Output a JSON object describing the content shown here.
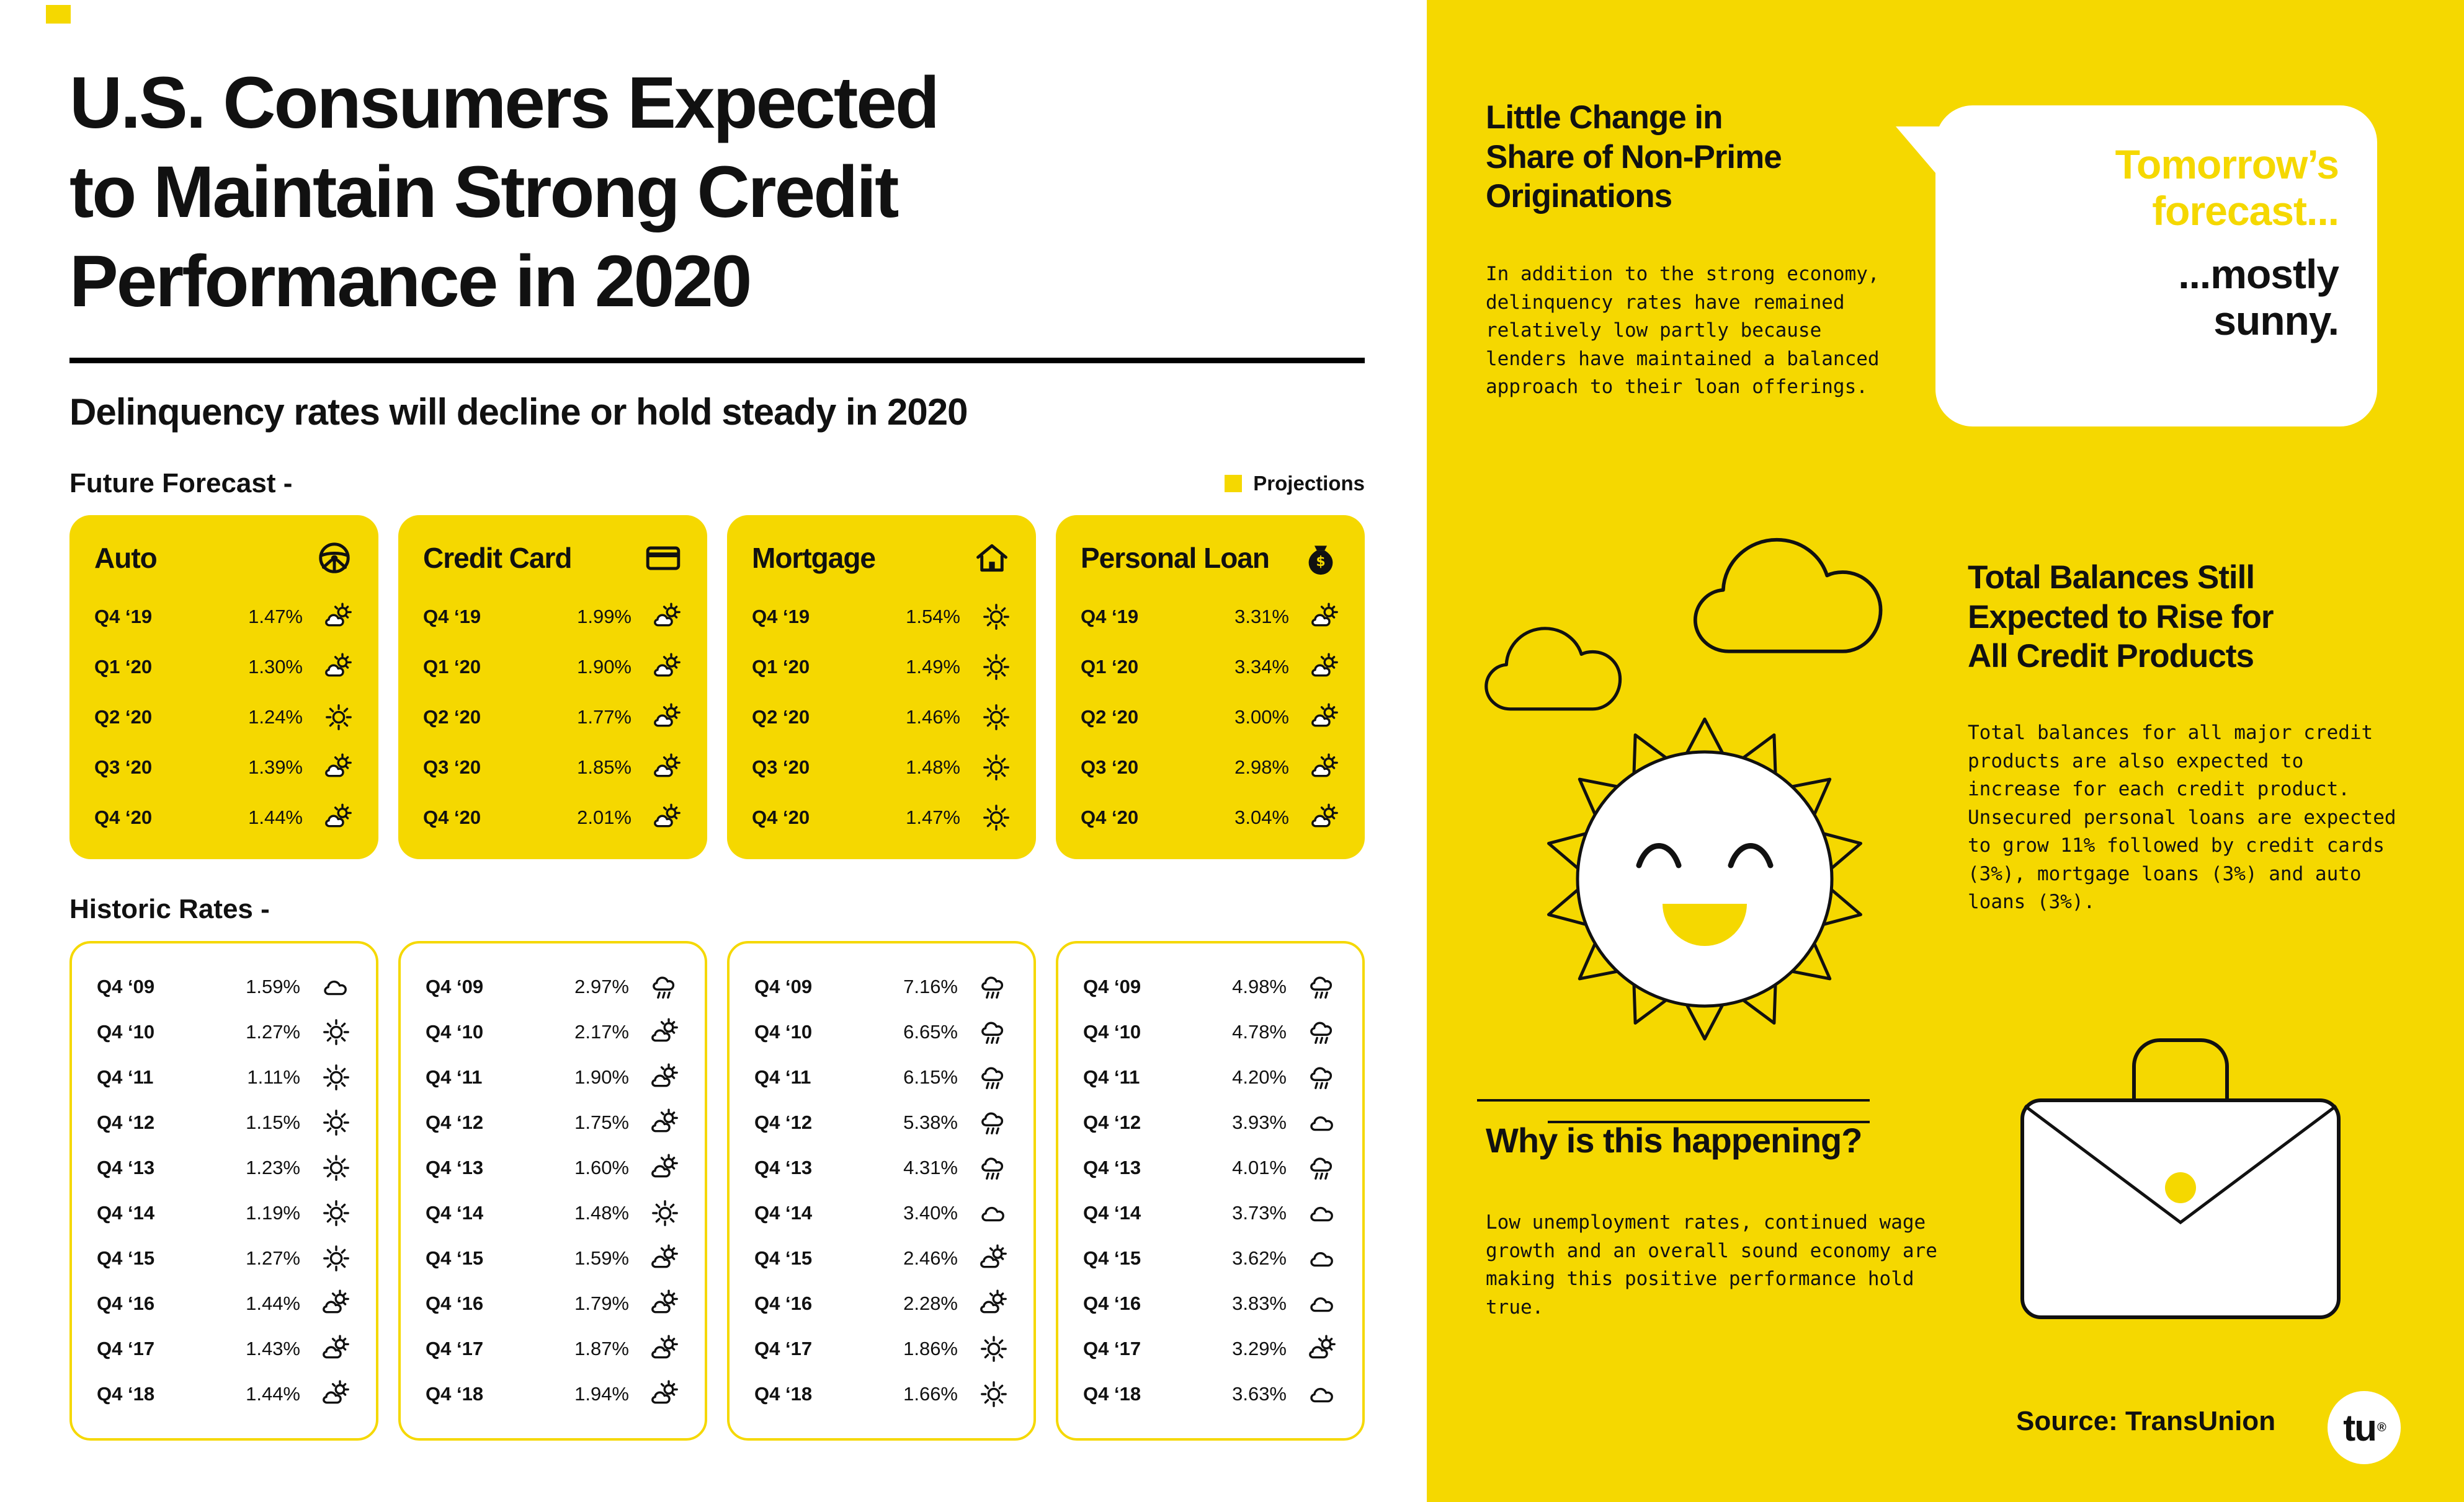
{
  "colors": {
    "yellow": "#F5D800",
    "ink": "#111111"
  },
  "page": {
    "title": "U.S. Consumers Expected\nto Maintain Strong Credit\nPerformance in 2020",
    "subtitle": "Delinquency rates will decline or hold steady in 2020",
    "forecast_label": "Future Forecast -",
    "historic_label": "Historic Rates -",
    "projections_label": "Projections"
  },
  "forecast_cards": [
    {
      "title": "Auto",
      "icon": "steering-wheel",
      "rows": [
        {
          "q": "Q4 ‘19",
          "v": "1.47%",
          "w": "partly-cloudy"
        },
        {
          "q": "Q1 ‘20",
          "v": "1.30%",
          "w": "partly-cloudy"
        },
        {
          "q": "Q2 ‘20",
          "v": "1.24%",
          "w": "sunny"
        },
        {
          "q": "Q3 ‘20",
          "v": "1.39%",
          "w": "partly-cloudy"
        },
        {
          "q": "Q4 ‘20",
          "v": "1.44%",
          "w": "partly-cloudy"
        }
      ]
    },
    {
      "title": "Credit Card",
      "icon": "credit-card",
      "rows": [
        {
          "q": "Q4 ‘19",
          "v": "1.99%",
          "w": "partly-cloudy"
        },
        {
          "q": "Q1 ‘20",
          "v": "1.90%",
          "w": "partly-cloudy"
        },
        {
          "q": "Q2 ‘20",
          "v": "1.77%",
          "w": "partly-cloudy"
        },
        {
          "q": "Q3 ‘20",
          "v": "1.85%",
          "w": "partly-cloudy"
        },
        {
          "q": "Q4 ‘20",
          "v": "2.01%",
          "w": "partly-cloudy"
        }
      ]
    },
    {
      "title": "Mortgage",
      "icon": "house",
      "rows": [
        {
          "q": "Q4 ‘19",
          "v": "1.54%",
          "w": "sunny"
        },
        {
          "q": "Q1 ‘20",
          "v": "1.49%",
          "w": "sunny"
        },
        {
          "q": "Q2 ‘20",
          "v": "1.46%",
          "w": "sunny"
        },
        {
          "q": "Q3 ‘20",
          "v": "1.48%",
          "w": "sunny"
        },
        {
          "q": "Q4 ‘20",
          "v": "1.47%",
          "w": "sunny"
        }
      ]
    },
    {
      "title": "Personal Loan",
      "icon": "money-bag",
      "rows": [
        {
          "q": "Q4 ‘19",
          "v": "3.31%",
          "w": "partly-cloudy"
        },
        {
          "q": "Q1 ‘20",
          "v": "3.34%",
          "w": "partly-cloudy"
        },
        {
          "q": "Q2 ‘20",
          "v": "3.00%",
          "w": "partly-cloudy"
        },
        {
          "q": "Q3 ‘20",
          "v": "2.98%",
          "w": "partly-cloudy"
        },
        {
          "q": "Q4 ‘20",
          "v": "3.04%",
          "w": "partly-cloudy"
        }
      ]
    }
  ],
  "historic_cards": [
    {
      "title": "Auto",
      "rows": [
        {
          "q": "Q4 ‘09",
          "v": "1.59%",
          "w": "cloudy"
        },
        {
          "q": "Q4 ‘10",
          "v": "1.27%",
          "w": "sunny"
        },
        {
          "q": "Q4 ‘11",
          "v": "1.11%",
          "w": "sunny"
        },
        {
          "q": "Q4 ‘12",
          "v": "1.15%",
          "w": "sunny"
        },
        {
          "q": "Q4 ‘13",
          "v": "1.23%",
          "w": "sunny"
        },
        {
          "q": "Q4 ‘14",
          "v": "1.19%",
          "w": "sunny"
        },
        {
          "q": "Q4 ‘15",
          "v": "1.27%",
          "w": "sunny"
        },
        {
          "q": "Q4 ‘16",
          "v": "1.44%",
          "w": "partly-cloudy"
        },
        {
          "q": "Q4 ‘17",
          "v": "1.43%",
          "w": "partly-cloudy"
        },
        {
          "q": "Q4 ‘18",
          "v": "1.44%",
          "w": "partly-cloudy"
        }
      ]
    },
    {
      "title": "Credit Card",
      "rows": [
        {
          "q": "Q4 ‘09",
          "v": "2.97%",
          "w": "rain"
        },
        {
          "q": "Q4 ‘10",
          "v": "2.17%",
          "w": "partly-cloudy"
        },
        {
          "q": "Q4 ‘11",
          "v": "1.90%",
          "w": "partly-cloudy"
        },
        {
          "q": "Q4 ‘12",
          "v": "1.75%",
          "w": "partly-cloudy"
        },
        {
          "q": "Q4 ‘13",
          "v": "1.60%",
          "w": "partly-cloudy"
        },
        {
          "q": "Q4 ‘14",
          "v": "1.48%",
          "w": "sunny"
        },
        {
          "q": "Q4 ‘15",
          "v": "1.59%",
          "w": "partly-cloudy"
        },
        {
          "q": "Q4 ‘16",
          "v": "1.79%",
          "w": "partly-cloudy"
        },
        {
          "q": "Q4 ‘17",
          "v": "1.87%",
          "w": "partly-cloudy"
        },
        {
          "q": "Q4 ‘18",
          "v": "1.94%",
          "w": "partly-cloudy"
        }
      ]
    },
    {
      "title": "Mortgage",
      "rows": [
        {
          "q": "Q4 ‘09",
          "v": "7.16%",
          "w": "rain"
        },
        {
          "q": "Q4 ‘10",
          "v": "6.65%",
          "w": "rain"
        },
        {
          "q": "Q4 ‘11",
          "v": "6.15%",
          "w": "rain"
        },
        {
          "q": "Q4 ‘12",
          "v": "5.38%",
          "w": "rain"
        },
        {
          "q": "Q4 ‘13",
          "v": "4.31%",
          "w": "rain"
        },
        {
          "q": "Q4 ‘14",
          "v": "3.40%",
          "w": "cloudy"
        },
        {
          "q": "Q4 ‘15",
          "v": "2.46%",
          "w": "partly-cloudy"
        },
        {
          "q": "Q4 ‘16",
          "v": "2.28%",
          "w": "partly-cloudy"
        },
        {
          "q": "Q4 ‘17",
          "v": "1.86%",
          "w": "sunny"
        },
        {
          "q": "Q4 ‘18",
          "v": "1.66%",
          "w": "sunny"
        }
      ]
    },
    {
      "title": "Personal Loan",
      "rows": [
        {
          "q": "Q4 ‘09",
          "v": "4.98%",
          "w": "rain"
        },
        {
          "q": "Q4 ‘10",
          "v": "4.78%",
          "w": "rain"
        },
        {
          "q": "Q4 ‘11",
          "v": "4.20%",
          "w": "rain"
        },
        {
          "q": "Q4 ‘12",
          "v": "3.93%",
          "w": "cloudy"
        },
        {
          "q": "Q4 ‘13",
          "v": "4.01%",
          "w": "rain"
        },
        {
          "q": "Q4 ‘14",
          "v": "3.73%",
          "w": "cloudy"
        },
        {
          "q": "Q4 ‘15",
          "v": "3.62%",
          "w": "cloudy"
        },
        {
          "q": "Q4 ‘16",
          "v": "3.83%",
          "w": "cloudy"
        },
        {
          "q": "Q4 ‘17",
          "v": "3.29%",
          "w": "partly-cloudy"
        },
        {
          "q": "Q4 ‘18",
          "v": "3.63%",
          "w": "cloudy"
        }
      ]
    }
  ],
  "right": {
    "section1": {
      "heading": "Little Change in\nShare of Non-Prime\nOriginations",
      "body": "In addition to the strong economy, delinquency rates have remained relatively low partly because lenders have maintained a balanced approach to their loan offerings."
    },
    "bubble": {
      "line1": "Tomorrow’s",
      "line2": "forecast...",
      "line3": "...mostly",
      "line4": "sunny."
    },
    "section2": {
      "heading": "Total Balances Still\nExpected to Rise for\nAll Credit Products",
      "body": "Total balances for all major credit products are also expected to increase for each credit product. Unsecured personal loans are expected to grow 11% followed by credit cards (3%), mortgage loans (3%) and auto loans (3%)."
    },
    "section3": {
      "heading": "Why is this happening?",
      "body": "Low unemployment rates, continued wage growth and an overall sound economy are making this positive performance hold true."
    },
    "source": "Source: TransUnion",
    "logo_text": "tu",
    "logo_reg": "®"
  }
}
